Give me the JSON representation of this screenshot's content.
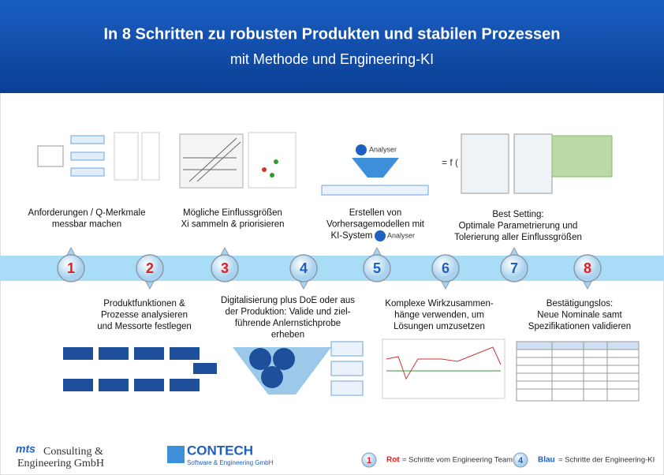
{
  "header": {
    "title": "In 8 Schritten zu robusten Produkten und stabilen Prozessen",
    "subtitle": "mit Methode und Engineering-KI"
  },
  "analyser_logo": "Analyser",
  "formula": "= f (",
  "steps": [
    {
      "number": 1,
      "color": "#e02020",
      "lines": [
        "Anforderungen / Q-Merkmale",
        "messbar machen"
      ]
    },
    {
      "number": 2,
      "color": "#e02020",
      "lines": [
        "Produktfunktionen &",
        "Prozesse analysieren",
        "und Messorte festlegen"
      ]
    },
    {
      "number": 3,
      "color": "#e02020",
      "lines": [
        "Mögliche Einflussgrößen",
        "Xi sammeln & priorisieren"
      ]
    },
    {
      "number": 4,
      "color": "#1f5fbf",
      "lines": [
        "Digitalisierung plus DoE oder aus",
        "der Produktion: Valide und ziel-",
        "führende Anlernstichprobe",
        "erheben"
      ]
    },
    {
      "number": 5,
      "color": "#1f5fbf",
      "lines": [
        "Erstellen von",
        "Vorhersagemodellen mit",
        "KI-System"
      ]
    },
    {
      "number": 6,
      "color": "#1f5fbf",
      "lines": [
        "Komplexe Wirkzusammen-",
        "hänge verwenden, um",
        "Lösungen umzusetzen"
      ]
    },
    {
      "number": 7,
      "color": "#1f5fbf",
      "lines": [
        "Best Setting:",
        "Optimale Parametrierung und",
        "Tolerierung aller Einflussgrößen"
      ]
    },
    {
      "number": 8,
      "color": "#e02020",
      "lines": [
        "Bestätigungslos:",
        "Neue Nominale samt",
        "Spezifikationen validieren"
      ]
    }
  ],
  "footer": {
    "mts_line1": "Consulting &",
    "mts_mark": "mts",
    "mts_line2": "Engineering GmbH",
    "contech": "CONTECH",
    "contech_sub": "Software & Engineering GmbH",
    "legend": [
      {
        "number": 1,
        "word": "Rot",
        "text": "= Schritte vom Engineering Team"
      },
      {
        "number": 4,
        "word": "Blau",
        "text": "= Schritte der Engineering-KI"
      }
    ]
  }
}
